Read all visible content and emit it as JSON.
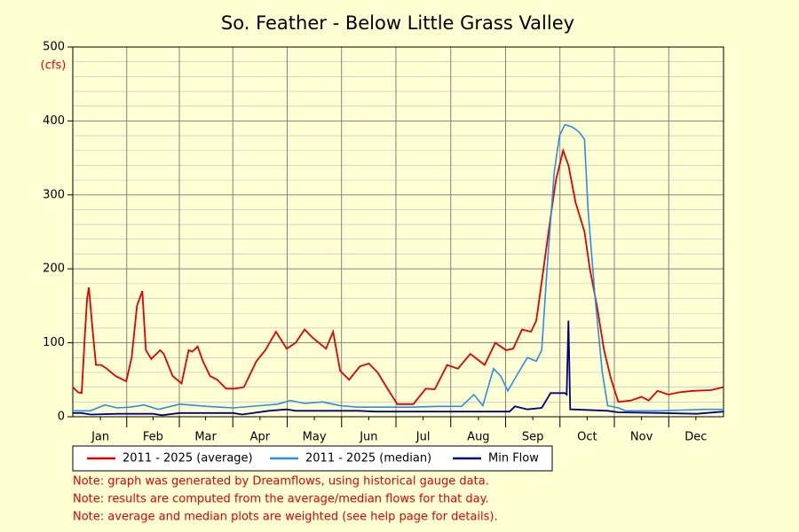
{
  "chart_data": {
    "type": "line",
    "title": "So. Feather - Below Little Grass Valley",
    "y_label": "(cfs)",
    "xlim": [
      0,
      365
    ],
    "xticks": [
      {
        "value": 15.5,
        "label": "Jan"
      },
      {
        "value": 45,
        "label": "Feb"
      },
      {
        "value": 74.5,
        "label": "Mar"
      },
      {
        "value": 105,
        "label": "Apr"
      },
      {
        "value": 135.5,
        "label": "May"
      },
      {
        "value": 166,
        "label": "Jun"
      },
      {
        "value": 196.5,
        "label": "Jul"
      },
      {
        "value": 227.5,
        "label": "Aug"
      },
      {
        "value": 258,
        "label": "Sep"
      },
      {
        "value": 288.5,
        "label": "Oct"
      },
      {
        "value": 319,
        "label": "Nov"
      },
      {
        "value": 349.5,
        "label": "Dec"
      }
    ],
    "ylim": [
      0,
      500
    ],
    "yticks": [
      0,
      100,
      200,
      300,
      400,
      500
    ],
    "yminorticks": [
      20,
      40,
      60,
      80,
      120,
      140,
      160,
      180,
      220,
      240,
      260,
      280,
      320,
      340,
      360,
      380,
      420,
      440,
      460,
      480
    ],
    "grid": true,
    "series": [
      {
        "name": "2011 - 2025 (average)",
        "color": "#e00000",
        "x": [
          0,
          3,
          5,
          6.5,
          8,
          9,
          11,
          13,
          16,
          19,
          24,
          30,
          33,
          36,
          39,
          41,
          44,
          49,
          51,
          56,
          61,
          65,
          67,
          70,
          73,
          77,
          81,
          86,
          91,
          96,
          103,
          108,
          114,
          120,
          125,
          130,
          134,
          138,
          142,
          146,
          150,
          155,
          161,
          166,
          171,
          176,
          182,
          191,
          198,
          203,
          210,
          216,
          223,
          231,
          237,
          243,
          247,
          252,
          257,
          260,
          264,
          268,
          271,
          275,
          278,
          282,
          287,
          290,
          294,
          298,
          302,
          306,
          313,
          319,
          323,
          328,
          334,
          340,
          348,
          358,
          365
        ],
        "values": [
          40,
          33,
          32,
          100,
          160,
          175,
          120,
          70,
          70,
          65,
          55,
          48,
          80,
          150,
          170,
          90,
          78,
          90,
          85,
          55,
          45,
          90,
          88,
          95,
          75,
          55,
          50,
          38,
          38,
          40,
          75,
          90,
          115,
          92,
          100,
          118,
          108,
          100,
          92,
          115,
          62,
          50,
          68,
          72,
          60,
          40,
          17,
          17,
          38,
          37,
          70,
          65,
          85,
          70,
          100,
          90,
          92,
          118,
          115,
          130,
          200,
          270,
          320,
          360,
          340,
          290,
          250,
          200,
          150,
          90,
          50,
          20,
          22,
          27,
          22,
          35,
          30,
          33,
          35,
          36,
          40
        ]
      },
      {
        "name": "2011 - 2025 (median)",
        "color": "#2a8fdc",
        "x": [
          0,
          10,
          18,
          25,
          32,
          40,
          48,
          60,
          75,
          90,
          105,
          115,
          122,
          130,
          140,
          150,
          160,
          175,
          190,
          205,
          218,
          225,
          230,
          236,
          240,
          244,
          250,
          255,
          260,
          263,
          266,
          270,
          273,
          276,
          280,
          284,
          287,
          289,
          293,
          297,
          300,
          306,
          310,
          330,
          355,
          365
        ],
        "values": [
          8,
          8,
          16,
          12,
          13,
          16,
          10,
          17,
          14,
          12,
          15,
          17,
          22,
          18,
          20,
          15,
          13,
          13,
          13,
          14,
          14,
          30,
          15,
          65,
          55,
          35,
          60,
          80,
          75,
          90,
          200,
          330,
          380,
          395,
          392,
          385,
          375,
          280,
          160,
          60,
          15,
          12,
          8,
          8,
          10,
          10
        ]
      },
      {
        "name": "Min Flow",
        "color": "#00007a",
        "x": [
          0,
          5,
          10,
          25,
          45,
          50,
          60,
          90,
          95,
          110,
          120,
          125,
          160,
          170,
          210,
          245,
          248,
          255,
          263,
          268,
          276,
          277,
          278,
          279,
          280,
          300,
          306,
          330,
          350,
          365
        ],
        "values": [
          5,
          5,
          3,
          4,
          4,
          2,
          5,
          5,
          3,
          8,
          10,
          8,
          8,
          7,
          7,
          7,
          14,
          10,
          12,
          32,
          32,
          30,
          130,
          10,
          10,
          8,
          6,
          5,
          4,
          7
        ]
      }
    ],
    "notes": [
      "Note: graph was generated by Dreamflows, using historical gauge data.",
      "Note: results are computed from the average/median flows for that day.",
      "Note: average and median plots are weighted (see help page for details)."
    ]
  }
}
